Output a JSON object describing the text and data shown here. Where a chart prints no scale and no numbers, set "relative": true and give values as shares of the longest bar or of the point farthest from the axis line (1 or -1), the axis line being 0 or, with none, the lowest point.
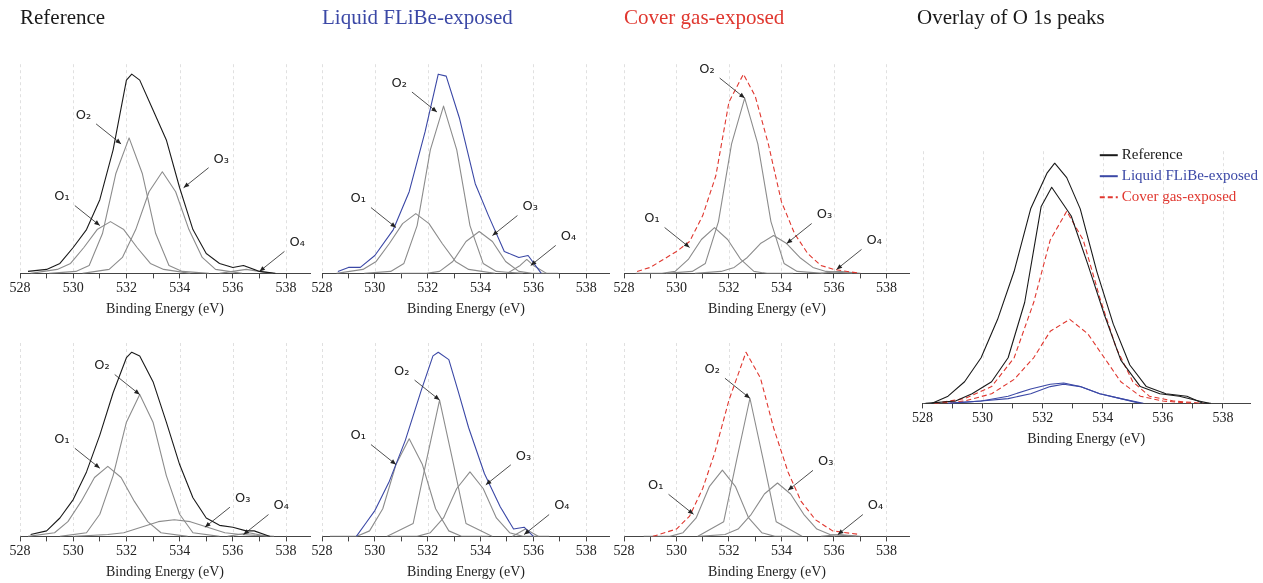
{
  "chart_data": [
    {
      "type": "line",
      "title": "Reference",
      "xlabel": "Binding Energy (eV)",
      "relative": true,
      "grid": "x",
      "xlim": [
        528,
        538.9
      ],
      "xticks": [
        528,
        {
          "value": 529,
          "label": null
        },
        530,
        {
          "value": 531,
          "label": null
        },
        532,
        {
          "value": 533,
          "label": null
        },
        534,
        {
          "value": 535,
          "label": null
        },
        536,
        {
          "value": 537,
          "label": null
        },
        538
      ],
      "series": [
        {
          "color": "#1a1a1a",
          "x": [
            528.3,
            529,
            529.5,
            530,
            530.5,
            531,
            531.5,
            532,
            532.2,
            532.5,
            533,
            533.5,
            534,
            534.5,
            535,
            535.5,
            536,
            536.4,
            537,
            537.6
          ],
          "values": [
            0.01,
            0.02,
            0.05,
            0.13,
            0.22,
            0.37,
            0.62,
            0.97,
            1,
            0.97,
            0.82,
            0.67,
            0.43,
            0.22,
            0.1,
            0.05,
            0.03,
            0.04,
            0.01,
            0
          ]
        },
        {
          "color": "#8c8c8c",
          "x": [
            528.4,
            529.4,
            529.9,
            530.4,
            530.9,
            531.4,
            531.9,
            532.4,
            532.9,
            533.4,
            534.4
          ],
          "values": [
            0,
            0.02,
            0.05,
            0.13,
            0.22,
            0.26,
            0.22,
            0.13,
            0.05,
            0.02,
            0
          ]
        },
        {
          "color": "#8c8c8c",
          "x": [
            529.1,
            530.1,
            530.6,
            531.1,
            531.6,
            532.1,
            532.6,
            533.1,
            533.6,
            534.1,
            535.1
          ],
          "values": [
            0,
            0.01,
            0.04,
            0.2,
            0.5,
            0.68,
            0.5,
            0.2,
            0.04,
            0.01,
            0
          ]
        },
        {
          "color": "#8c8c8c",
          "x": [
            530.35,
            531.35,
            531.85,
            532.35,
            532.85,
            533.35,
            533.85,
            534.35,
            534.85,
            535.35,
            536.35
          ],
          "values": [
            0,
            0.02,
            0.08,
            0.22,
            0.41,
            0.51,
            0.41,
            0.22,
            0.08,
            0.02,
            0
          ]
        },
        {
          "color": "#8c8c8c",
          "x": [
            535.5,
            536,
            536.5,
            537,
            537.5
          ],
          "values": [
            0,
            0.01,
            0.02,
            0.01,
            0
          ]
        }
      ],
      "annotations": [
        {
          "text": "O₁",
          "x": 531.0,
          "y": 0.24
        },
        {
          "text": "O₂",
          "x": 531.8,
          "y": 0.65
        },
        {
          "text": "O₃",
          "x": 534.15,
          "y": 0.43
        },
        {
          "text": "O₄",
          "x": 537.0,
          "y": 0.01
        }
      ]
    },
    {
      "type": "line",
      "title": "Liquid FLiBe-exposed",
      "xlabel": "Binding Energy (eV)",
      "relative": true,
      "grid": "x",
      "xlim": [
        528,
        538.9
      ],
      "xticks": [
        528,
        {
          "value": 529,
          "label": null
        },
        530,
        {
          "value": 531,
          "label": null
        },
        532,
        {
          "value": 533,
          "label": null
        },
        534,
        {
          "value": 535,
          "label": null
        },
        536,
        {
          "value": 537,
          "label": null
        },
        538
      ],
      "series": [
        {
          "color": "#3b48a6",
          "x": [
            528.6,
            529,
            529.45,
            530,
            530.7,
            531.3,
            531.9,
            532.4,
            532.7,
            533.2,
            533.8,
            534.3,
            534.9,
            535.45,
            535.8,
            536.3
          ],
          "values": [
            0.01,
            0.03,
            0.03,
            0.09,
            0.22,
            0.41,
            0.71,
            1,
            0.99,
            0.78,
            0.45,
            0.29,
            0.11,
            0.08,
            0.09,
            0
          ]
        },
        {
          "color": "#8c8c8c",
          "x": [
            528.55,
            529.55,
            530.05,
            530.55,
            531.05,
            531.55,
            532.05,
            532.55,
            533.05,
            533.55,
            534.55
          ],
          "values": [
            0,
            0.02,
            0.06,
            0.15,
            0.25,
            0.3,
            0.25,
            0.15,
            0.06,
            0.02,
            0
          ]
        },
        {
          "color": "#8c8c8c",
          "x": [
            529.6,
            530.6,
            531.1,
            531.6,
            532.1,
            532.6,
            533.1,
            533.6,
            534.1,
            534.6,
            535.6
          ],
          "values": [
            0,
            0.01,
            0.05,
            0.24,
            0.62,
            0.84,
            0.62,
            0.24,
            0.05,
            0.01,
            0
          ]
        },
        {
          "color": "#8c8c8c",
          "x": [
            530.95,
            531.95,
            532.45,
            532.95,
            533.45,
            533.95,
            534.45,
            534.95,
            535.45,
            535.95,
            536.95
          ],
          "values": [
            0,
            0,
            0.01,
            0.06,
            0.16,
            0.21,
            0.16,
            0.06,
            0.01,
            0,
            0
          ]
        },
        {
          "color": "#8c8c8c",
          "x": [
            535,
            535.5,
            535.75,
            536,
            536.5
          ],
          "values": [
            0,
            0.04,
            0.07,
            0.04,
            0
          ]
        }
      ],
      "annotations": [
        {
          "text": "O₁",
          "x": 530.8,
          "y": 0.23
        },
        {
          "text": "O₂",
          "x": 532.35,
          "y": 0.81
        },
        {
          "text": "O₃",
          "x": 534.45,
          "y": 0.19
        },
        {
          "text": "O₄",
          "x": 535.9,
          "y": 0.04
        }
      ]
    },
    {
      "type": "line",
      "title": "Cover gas-exposed",
      "xlabel": "Binding Energy (eV)",
      "relative": true,
      "grid": "x",
      "xlim": [
        528,
        538.9
      ],
      "xticks": [
        528,
        {
          "value": 529,
          "label": null
        },
        530,
        {
          "value": 531,
          "label": null
        },
        532,
        {
          "value": 533,
          "label": null
        },
        534,
        {
          "value": 535,
          "label": null
        },
        536,
        {
          "value": 537,
          "label": null
        },
        538
      ],
      "series": [
        {
          "color": "#e0372f",
          "line_style": "dashed",
          "x": [
            528.5,
            529,
            530,
            530.5,
            531,
            531.5,
            532,
            532.55,
            533,
            533.5,
            534,
            534.5,
            535,
            535.5,
            536,
            537
          ],
          "values": [
            0.01,
            0.03,
            0.11,
            0.16,
            0.29,
            0.49,
            0.86,
            1,
            0.89,
            0.65,
            0.36,
            0.2,
            0.1,
            0.04,
            0.02,
            0
          ]
        },
        {
          "color": "#8c8c8c",
          "x": [
            528.45,
            529.45,
            529.95,
            530.45,
            530.95,
            531.45,
            531.95,
            532.45,
            532.95,
            533.45,
            534.45
          ],
          "values": [
            0,
            0,
            0.01,
            0.07,
            0.17,
            0.23,
            0.17,
            0.07,
            0.01,
            0,
            0
          ]
        },
        {
          "color": "#8c8c8c",
          "x": [
            529.6,
            530.6,
            531.1,
            531.6,
            532.1,
            532.6,
            533.1,
            533.6,
            534.1,
            534.6,
            535.6
          ],
          "values": [
            0,
            0.01,
            0.05,
            0.26,
            0.65,
            0.88,
            0.65,
            0.26,
            0.05,
            0.01,
            0
          ]
        },
        {
          "color": "#8c8c8c",
          "x": [
            530.7,
            531.7,
            532.2,
            532.7,
            533.2,
            533.7,
            534.2,
            534.7,
            535.2,
            535.7,
            536.7
          ],
          "values": [
            0,
            0.01,
            0.03,
            0.08,
            0.15,
            0.19,
            0.15,
            0.08,
            0.03,
            0.01,
            0
          ]
        },
        {
          "color": "#8c8c8c",
          "x": [
            535.5,
            536.2,
            537
          ],
          "values": [
            0,
            0.01,
            0
          ]
        }
      ],
      "annotations": [
        {
          "text": "O₁",
          "x": 530.5,
          "y": 0.13
        },
        {
          "text": "O₂",
          "x": 532.6,
          "y": 0.88
        },
        {
          "text": "O₃",
          "x": 534.2,
          "y": 0.15
        },
        {
          "text": "O₄",
          "x": 536.1,
          "y": 0.02
        }
      ]
    },
    {
      "type": "line",
      "xlabel": "Binding Energy (eV)",
      "relative": true,
      "grid": "x",
      "xlim": [
        528,
        538.9
      ],
      "xticks": [
        528,
        {
          "value": 529,
          "label": null
        },
        530,
        {
          "value": 531,
          "label": null
        },
        532,
        {
          "value": 533,
          "label": null
        },
        534,
        {
          "value": 535,
          "label": null
        },
        536,
        {
          "value": 537,
          "label": null
        },
        538
      ],
      "series": [
        {
          "color": "#1a1a1a",
          "x": [
            528.4,
            529,
            529.5,
            530,
            530.5,
            531,
            531.5,
            532,
            532.2,
            532.5,
            533,
            533.5,
            534,
            534.5,
            535,
            535.5,
            536,
            536.5,
            536.8,
            537.4
          ],
          "values": [
            0.01,
            0.03,
            0.1,
            0.2,
            0.35,
            0.55,
            0.78,
            0.97,
            1,
            0.98,
            0.84,
            0.62,
            0.39,
            0.21,
            0.1,
            0.06,
            0.05,
            0.03,
            0.03,
            0
          ]
        },
        {
          "color": "#8c8c8c",
          "x": [
            528.3,
            529.3,
            529.8,
            530.3,
            530.8,
            531.3,
            531.8,
            532.3,
            532.8,
            533.3,
            534.3
          ],
          "values": [
            0,
            0.02,
            0.08,
            0.19,
            0.32,
            0.38,
            0.32,
            0.19,
            0.08,
            0.02,
            0
          ]
        },
        {
          "color": "#8c8c8c",
          "x": [
            529.5,
            530.5,
            531,
            531.5,
            532,
            532.5,
            533,
            533.5,
            534,
            534.5,
            535.5
          ],
          "values": [
            0,
            0.02,
            0.12,
            0.33,
            0.62,
            0.77,
            0.62,
            0.33,
            0.12,
            0.02,
            0
          ]
        },
        {
          "color": "#8c8c8c",
          "x": [
            530.05,
            531.3,
            531.9,
            532.55,
            533.2,
            533.8,
            534.4,
            535.05,
            535.7,
            536.3,
            537.55
          ],
          "values": [
            0,
            0.01,
            0.02,
            0.05,
            0.08,
            0.09,
            0.08,
            0.05,
            0.02,
            0.01,
            0
          ]
        },
        {
          "color": "#8c8c8c",
          "x": [
            535.8,
            536.6,
            537.3
          ],
          "values": [
            0,
            0.02,
            0
          ]
        }
      ],
      "annotations": [
        {
          "text": "O₁",
          "x": 531.0,
          "y": 0.37
        },
        {
          "text": "O₂",
          "x": 532.5,
          "y": 0.77
        },
        {
          "text": "O₃",
          "x": 534.95,
          "y": 0.05
        },
        {
          "text": "O₄",
          "x": 536.4,
          "y": 0.01
        }
      ]
    },
    {
      "type": "line",
      "xlabel": "Binding Energy (eV)",
      "relative": true,
      "grid": "x",
      "xlim": [
        528,
        538.9
      ],
      "xticks": [
        528,
        {
          "value": 529,
          "label": null
        },
        530,
        {
          "value": 531,
          "label": null
        },
        532,
        {
          "value": 533,
          "label": null
        },
        534,
        {
          "value": 535,
          "label": null
        },
        536,
        {
          "value": 537,
          "label": null
        },
        538
      ],
      "series": [
        {
          "color": "#3b48a6",
          "x": [
            529.3,
            529.65,
            530,
            530.55,
            531.15,
            531.75,
            532.2,
            532.4,
            532.8,
            533.15,
            533.55,
            534.15,
            534.75,
            535.25,
            535.65,
            536
          ],
          "values": [
            0,
            0.07,
            0.14,
            0.3,
            0.52,
            0.79,
            0.98,
            1,
            0.96,
            0.79,
            0.59,
            0.34,
            0.16,
            0.04,
            0.05,
            0
          ]
        },
        {
          "color": "#8c8c8c",
          "x": [
            528.3,
            529.3,
            529.8,
            530.3,
            530.8,
            531.3,
            531.8,
            532.3,
            532.8,
            533.3,
            534.3
          ],
          "values": [
            0,
            0,
            0.03,
            0.15,
            0.39,
            0.53,
            0.39,
            0.15,
            0.03,
            0,
            0
          ]
        },
        {
          "color": "#8c8c8c",
          "x": [
            530.45,
            531.45,
            531.95,
            532.45,
            532.95,
            533.45,
            534.45
          ],
          "values": [
            0,
            0.07,
            0.41,
            0.74,
            0.41,
            0.07,
            0
          ]
        },
        {
          "color": "#8c8c8c",
          "x": [
            530.6,
            531.6,
            532.1,
            532.6,
            533.1,
            533.6,
            534.1,
            534.6,
            535.1,
            535.6,
            536.6
          ],
          "values": [
            0,
            0,
            0.02,
            0.1,
            0.26,
            0.35,
            0.26,
            0.1,
            0.02,
            0,
            0
          ]
        },
        {
          "color": "#8c8c8c",
          "x": [
            535.2,
            535.7,
            536.2
          ],
          "values": [
            0,
            0.04,
            0
          ]
        }
      ],
      "annotations": [
        {
          "text": "O₁",
          "x": 530.8,
          "y": 0.39
        },
        {
          "text": "O₂",
          "x": 532.45,
          "y": 0.74
        },
        {
          "text": "O₃",
          "x": 534.2,
          "y": 0.28
        },
        {
          "text": "O₄",
          "x": 535.65,
          "y": 0.01
        }
      ]
    },
    {
      "type": "line",
      "xlabel": "Binding Energy (eV)",
      "relative": true,
      "grid": "x",
      "xlim": [
        528,
        538.9
      ],
      "xticks": [
        528,
        {
          "value": 529,
          "label": null
        },
        530,
        {
          "value": 531,
          "label": null
        },
        532,
        {
          "value": 533,
          "label": null
        },
        534,
        {
          "value": 535,
          "label": null
        },
        536,
        {
          "value": 537,
          "label": null
        },
        538
      ],
      "series": [
        {
          "color": "#e0372f",
          "line_style": "dashed",
          "x": [
            529.1,
            530,
            530.5,
            531,
            531.45,
            532,
            532.65,
            533.2,
            533.7,
            534.25,
            534.75,
            535.3,
            535.95,
            537
          ],
          "values": [
            0,
            0.04,
            0.11,
            0.26,
            0.45,
            0.74,
            1,
            0.86,
            0.59,
            0.35,
            0.19,
            0.09,
            0.03,
            0.01
          ]
        },
        {
          "color": "#8c8c8c",
          "x": [
            528.75,
            529.75,
            530.25,
            530.75,
            531.25,
            531.75,
            532.25,
            532.75,
            533.25,
            533.75,
            534.75
          ],
          "values": [
            0,
            0,
            0.02,
            0.1,
            0.27,
            0.36,
            0.27,
            0.1,
            0.02,
            0,
            0
          ]
        },
        {
          "color": "#8c8c8c",
          "x": [
            530.8,
            531.8,
            532.3,
            532.8,
            533.3,
            533.8,
            534.8
          ],
          "values": [
            0,
            0.08,
            0.42,
            0.75,
            0.42,
            0.08,
            0
          ]
        },
        {
          "color": "#8c8c8c",
          "x": [
            530.85,
            531.85,
            532.35,
            532.85,
            533.35,
            533.85,
            534.35,
            534.85,
            535.35,
            535.85,
            536.85
          ],
          "values": [
            0,
            0.01,
            0.04,
            0.12,
            0.23,
            0.29,
            0.23,
            0.12,
            0.04,
            0.01,
            0
          ]
        },
        {
          "color": "#8c8c8c",
          "x": [
            535.5,
            536.2,
            537
          ],
          "values": [
            0,
            0.01,
            0
          ]
        }
      ],
      "annotations": [
        {
          "text": "O₁",
          "x": 530.65,
          "y": 0.12
        },
        {
          "text": "O₂",
          "x": 532.8,
          "y": 0.75
        },
        {
          "text": "O₃",
          "x": 534.25,
          "y": 0.25
        },
        {
          "text": "O₄",
          "x": 536.15,
          "y": 0.01
        }
      ]
    },
    {
      "type": "line",
      "title": "Overlay of O 1s peaks",
      "xlabel": "Binding Energy (eV)",
      "relative": true,
      "grid": "x",
      "legend": "top right",
      "xlim": [
        528,
        538.9
      ],
      "xticks": [
        528,
        {
          "value": 529,
          "label": null
        },
        530,
        {
          "value": 531,
          "label": null
        },
        532,
        {
          "value": 533,
          "label": null
        },
        534,
        {
          "value": 535,
          "label": null
        },
        536,
        {
          "value": 537,
          "label": null
        },
        538
      ],
      "series": [
        {
          "name": "Reference",
          "color": "#1a1a1a",
          "x": [
            528.3,
            528.85,
            529.4,
            529.95,
            530.5,
            531.05,
            531.6,
            532.15,
            532.4,
            532.8,
            533.25,
            533.8,
            534.35,
            534.9,
            535.45,
            536.1,
            536.8,
            537.35,
            537.6
          ],
          "values": [
            0,
            0.03,
            0.09,
            0.19,
            0.35,
            0.55,
            0.81,
            0.96,
            1,
            0.94,
            0.81,
            0.55,
            0.33,
            0.16,
            0.07,
            0.04,
            0.03,
            0,
            0
          ]
        },
        {
          "color": "#1a1a1a",
          "x": [
            528.1,
            529.1,
            529.65,
            530.3,
            530.85,
            531.4,
            531.95,
            532.3,
            532.95,
            533.5,
            534.05,
            534.6,
            535.25,
            535.9,
            536.55,
            537.2,
            537.55
          ],
          "values": [
            0,
            0.01,
            0.04,
            0.09,
            0.19,
            0.42,
            0.82,
            0.9,
            0.78,
            0.58,
            0.37,
            0.18,
            0.07,
            0.04,
            0.03,
            0.01,
            0
          ]
        },
        {
          "name": "Liquid FLiBe-exposed",
          "color": "#3b48a6",
          "x": [
            528.85,
            529.95,
            530.85,
            531.6,
            532.25,
            532.7,
            533.25,
            533.9,
            534.6,
            535.25
          ],
          "values": [
            0,
            0.01,
            0.03,
            0.06,
            0.08,
            0.085,
            0.07,
            0.04,
            0.02,
            0
          ]
        },
        {
          "color": "#3b48a6",
          "x": [
            528.85,
            529.95,
            530.85,
            531.6,
            532.25,
            532.7,
            533.25,
            533.9,
            534.6,
            535.35
          ],
          "values": [
            0,
            0.01,
            0.02,
            0.04,
            0.07,
            0.08,
            0.07,
            0.04,
            0.02,
            0
          ]
        },
        {
          "name": "Cover gas-exposed",
          "color": "#e0372f",
          "line_style": "dashed",
          "x": [
            528.4,
            529.4,
            530.3,
            531.05,
            531.7,
            532.25,
            532.8,
            533.35,
            533.9,
            534.45,
            535,
            535.55,
            536.35,
            537.35
          ],
          "values": [
            0,
            0.02,
            0.07,
            0.19,
            0.42,
            0.68,
            0.8,
            0.68,
            0.44,
            0.23,
            0.09,
            0.03,
            0.01,
            0
          ]
        },
        {
          "color": "#e0372f",
          "line_style": "dashed",
          "x": [
            528.4,
            529.4,
            530.3,
            531.05,
            531.7,
            532.25,
            532.9,
            533.5,
            534.05,
            534.6,
            535.25,
            536,
            537
          ],
          "values": [
            0,
            0.01,
            0.04,
            0.1,
            0.19,
            0.3,
            0.35,
            0.29,
            0.19,
            0.09,
            0.03,
            0.01,
            0
          ]
        }
      ]
    }
  ]
}
